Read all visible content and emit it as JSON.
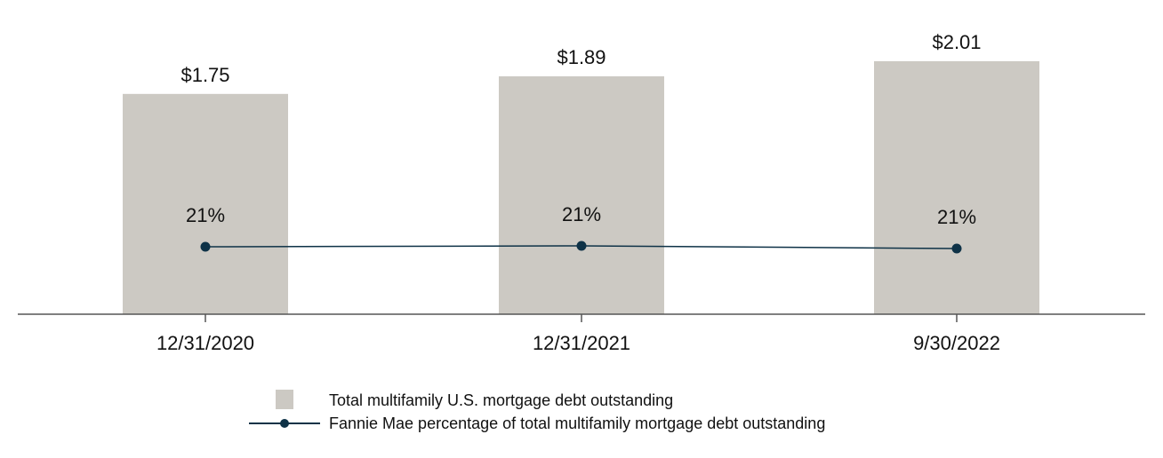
{
  "chart_data": {
    "type": "bar",
    "categories": [
      "12/31/2020",
      "12/31/2021",
      "9/30/2022"
    ],
    "series": [
      {
        "name": "Total multifamily U.S. mortgage debt outstanding",
        "kind": "bar",
        "values": [
          1.75,
          1.89,
          2.01
        ],
        "labels": [
          "$1.75",
          "$1.89",
          "$2.01"
        ],
        "color": "#ccc9c3"
      },
      {
        "name": "Fannie Mae percentage of total multifamily mortgage debt outstanding",
        "kind": "line",
        "values": [
          21,
          21,
          21
        ],
        "labels": [
          "21%",
          "21%",
          "21%"
        ],
        "color": "#0e3247"
      }
    ],
    "ylim": [
      0,
      2.2
    ],
    "grid": false,
    "legend_position": "bottom"
  }
}
